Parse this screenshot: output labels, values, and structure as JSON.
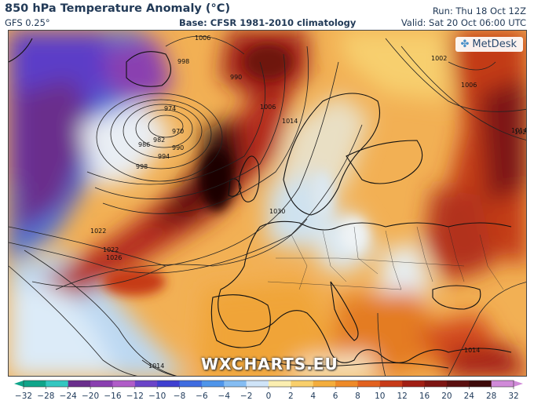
{
  "header": {
    "title": "850 hPa Temperature Anomaly (°C)",
    "model": "GFS 0.25°",
    "base": "Base: CFSR 1981-2010 climatology",
    "run": "Run: Thu 18 Oct 12Z",
    "valid": "Valid: Sat 20 Oct 06:00 UTC"
  },
  "branding": {
    "logo": "MetDesk",
    "logo_icon": "metdesk-icon",
    "watermark": "WXCHARTS.EU"
  },
  "isobar_labels": [
    "1006",
    "998",
    "990",
    "974",
    "970",
    "982",
    "986",
    "990",
    "994",
    "998",
    "1006",
    "1014",
    "1022",
    "1022",
    "1026",
    "1030",
    "1002",
    "1006",
    "1014",
    "1014",
    "1022",
    "1014"
  ],
  "colorbar": {
    "ticks": [
      "−32",
      "−28",
      "−24",
      "−20",
      "−16",
      "−12",
      "−10",
      "−8",
      "−6",
      "−4",
      "−2",
      "0",
      "2",
      "4",
      "6",
      "8",
      "10",
      "12",
      "16",
      "20",
      "24",
      "28",
      "32"
    ],
    "colors": [
      "#0fa58a",
      "#33c7c0",
      "#6a2e8c",
      "#8a3fb0",
      "#b05cc8",
      "#6b44c8",
      "#3f3fd0",
      "#3f6ce0",
      "#4f95ea",
      "#85bdf3",
      "#cfe4f8",
      "#fbeeb0",
      "#f9cf6b",
      "#f4ad3c",
      "#ee8a28",
      "#e2611f",
      "#c73a18",
      "#a11f14",
      "#7d1512",
      "#5a0f0f",
      "#3d0a0a",
      "#d08ad8"
    ]
  },
  "colors": {
    "cold_purple": "#6a2e8c",
    "cold_blue": "#3f6ce0",
    "neutral": "#f6ecc8",
    "warm_orange": "#ee8a28",
    "warm_red": "#c73a18",
    "hot_dark": "#3d0a0a"
  }
}
